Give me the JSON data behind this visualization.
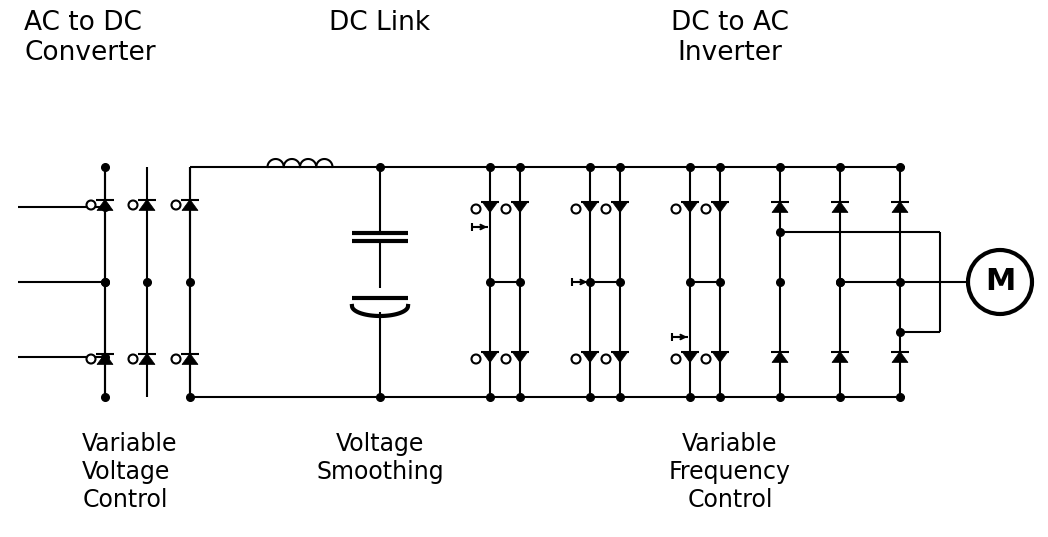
{
  "bg_color": "#ffffff",
  "line_color": "#000000",
  "lw": 1.5,
  "dot_r": 5.5,
  "labels": {
    "ac_dc_title": "AC to DC\nConverter",
    "dc_link_title": "DC Link",
    "dc_ac_title": "DC to AC\nInverter",
    "var_volt": "Variable\nVoltage\nControl",
    "volt_smooth": "Voltage\nSmoothing",
    "var_freq": "Variable\nFrequency\nControl"
  },
  "fs_big": 19,
  "fs_small": 17
}
